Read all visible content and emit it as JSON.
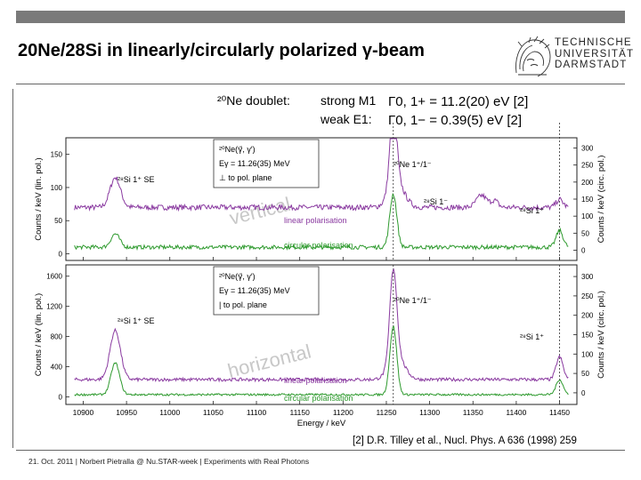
{
  "slide": {
    "title": "20Ne/28Si in linearly/circularly polarized γ-beam",
    "logo_lines": [
      "TECHNISCHE",
      "UNIVERSITÄT",
      "DARMSTADT"
    ],
    "footer": "21. Oct. 2011 | Norbert Pietralla @ Nu.STAR-week | Experiments with Real Photons",
    "colors": {
      "topbar": "#7a7a7a",
      "linear": "#8a3aa0",
      "circular": "#2e9a2e",
      "annotation": "#c8c8c8"
    }
  },
  "figure": {
    "doublet_label": "²⁰Ne doublet:",
    "strong_label": "strong M1",
    "strong_eq": "Γ0, 1+ = 11.2(20) eV [2]",
    "weak_label": "weak E1:",
    "weak_eq": "Γ0, 1− = 0.39(5) eV [2]",
    "reference": "[2] D.R. Tilley et al., Nucl. Phys. A 636 (1998) 259"
  },
  "chart_data": [
    {
      "type": "line",
      "title": "",
      "panel_note": "vertical",
      "box_lines": [
        "²⁰Ne(γ⃗, γ′)",
        "Eγ = 11.26(35) MeV",
        "⊥ to pol. plane"
      ],
      "xlabel": "Energy / keV",
      "ylabel": "Counts / keV (lin. pol.)",
      "ylabel_right": "Counts / keV (circ. pol.)",
      "xlim": [
        10880,
        11470
      ],
      "ylim": [
        -10,
        175
      ],
      "yticks": [
        0,
        50,
        100,
        150
      ],
      "ylim_right": [
        -30,
        330
      ],
      "yticks_right": [
        0,
        50,
        100,
        150,
        200,
        250,
        300
      ],
      "annotations": [
        "²⁸Si 1⁺ SE",
        "²⁰Ne 1⁺/1⁻",
        "²⁸Si 1⁻",
        "²⁸Si 1⁺"
      ],
      "series": [
        {
          "name": "linear polarisation",
          "color": "#8a3aa0",
          "axis": "left",
          "baseline": 70,
          "noise": 4,
          "peaks": [
            [
              10937,
              45,
              6
            ],
            [
              11258,
              115,
              4
            ],
            [
              11262,
              35,
              9
            ],
            [
              11360,
              18,
              6
            ],
            [
              11375,
              10,
              4
            ],
            [
              11450,
              12,
              4
            ]
          ]
        },
        {
          "name": "circular polarisation",
          "color": "#2e9a2e",
          "axis": "left",
          "baseline": 10,
          "noise": 3,
          "peaks": [
            [
              10937,
              20,
              5
            ],
            [
              11258,
              80,
              4
            ],
            [
              11450,
              25,
              4
            ]
          ]
        }
      ]
    },
    {
      "type": "line",
      "title": "",
      "panel_note": "horizontal",
      "box_lines": [
        "²⁰Ne(γ⃗, γ′)",
        "Eγ = 11.26(35) MeV",
        "| to pol. plane"
      ],
      "xlabel": "Energy / keV",
      "ylabel": "Counts / keV (lin. pol.)",
      "ylabel_right": "Counts / keV (circ. pol.)",
      "xlim": [
        10880,
        11470
      ],
      "ylim": [
        -100,
        1750
      ],
      "yticks": [
        0,
        400,
        800,
        1200,
        1600
      ],
      "ylim_right": [
        -30,
        330
      ],
      "yticks_right": [
        0,
        50,
        100,
        150,
        200,
        250,
        300
      ],
      "xticks": [
        10900,
        10950,
        11000,
        11050,
        11100,
        11150,
        11200,
        11250,
        11300,
        11350,
        11400,
        11450
      ],
      "annotations": [
        "²⁸Si 1⁺ SE",
        "²⁰Ne 1⁺/1⁻",
        "²⁸Si 1⁺"
      ],
      "series": [
        {
          "name": "linear polarisation",
          "color": "#8a3aa0",
          "axis": "left",
          "baseline": 230,
          "noise": 22,
          "peaks": [
            [
              10937,
              650,
              6
            ],
            [
              11258,
              1200,
              4
            ],
            [
              11262,
              300,
              9
            ],
            [
              11450,
              300,
              4
            ]
          ]
        },
        {
          "name": "circular polarisation",
          "color": "#2e9a2e",
          "axis": "left",
          "baseline": 30,
          "noise": 14,
          "peaks": [
            [
              10937,
              420,
              5
            ],
            [
              11258,
              900,
              4
            ],
            [
              11450,
              200,
              4
            ]
          ]
        }
      ]
    }
  ]
}
